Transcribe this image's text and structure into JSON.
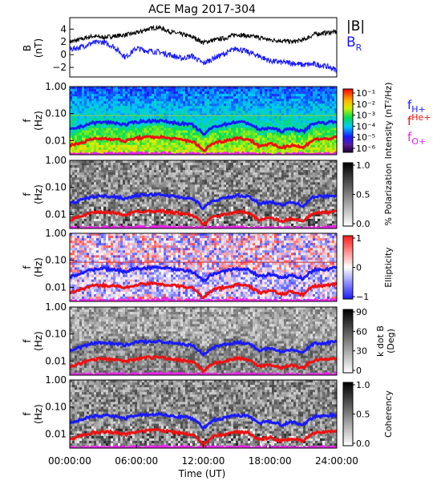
{
  "title": "ACE Mag 2017-304",
  "time_axis": {
    "label": "Time (UT)",
    "ticks": [
      "00:00:00",
      "06:00:00",
      "12:00:00",
      "18:00:00",
      "24:00:00"
    ],
    "range_hours": [
      0,
      24
    ]
  },
  "freq_axis": {
    "label_f": "f",
    "label_unit": "(Hz)",
    "scale": "log",
    "range_hz": [
      0.003,
      1.0
    ],
    "ticks": [
      {
        "value": 1.0,
        "label": "1.00"
      },
      {
        "value": 0.1,
        "label": "0.10"
      },
      {
        "value": 0.01,
        "label": "0.01"
      }
    ]
  },
  "field_panel": {
    "ylabel_line1": "B",
    "ylabel_line2": "(nT)",
    "legend_B": "|B|",
    "legend_BR": "B",
    "legend_BR_sub": "R",
    "ylim": [
      -3.5,
      5.8
    ],
    "yticks": [
      "4",
      "2",
      "0",
      "−2"
    ],
    "ytick_values": [
      4,
      2,
      0,
      -2
    ]
  },
  "spectrogram_panels": [
    {
      "id": "intensity",
      "colorbar_label": "Intensity (nT²/Hz)",
      "colorbar_ticks": [
        "10⁻¹",
        "10⁻²",
        "10⁻³",
        "10⁻⁴",
        "10⁻⁵",
        "10⁻⁶"
      ],
      "colorscale": "rainbow",
      "range": [
        1e-07,
        0.1
      ]
    },
    {
      "id": "polarization",
      "colorbar_label": "% Polarization",
      "colorbar_ticks": [
        "1.0",
        "0.5",
        "0.0"
      ],
      "colorscale": "gray",
      "range": [
        0,
        1
      ]
    },
    {
      "id": "ellipticity",
      "colorbar_label": "Ellipticity",
      "colorbar_ticks": [
        "1",
        "0",
        "−1"
      ],
      "colorscale": "blue-white-red",
      "range": [
        -1,
        1
      ]
    },
    {
      "id": "kdotb",
      "colorbar_label_line1": "k dot B",
      "colorbar_label_line2": "(Deg)",
      "colorbar_ticks": [
        "90",
        "60",
        "30",
        "0"
      ],
      "colorscale": "gray",
      "range": [
        0,
        90
      ]
    },
    {
      "id": "coherency",
      "colorbar_label": "Coherency",
      "colorbar_ticks": [
        "1.0",
        "0.5",
        "0.0"
      ],
      "colorscale": "gray",
      "range": [
        0,
        1
      ]
    }
  ],
  "gyro_legend": [
    {
      "label": "f",
      "sub": "H+",
      "color": "#1a1aff"
    },
    {
      "label": "f",
      "sub": "He+",
      "color": "#ee1111"
    },
    {
      "label": "f",
      "sub": "O+",
      "color": "#ee22ee"
    }
  ],
  "colors": {
    "B_total": "#000000",
    "B_R": "#1a1aff",
    "f_H": "#1a1aff",
    "f_He": "#ee1111",
    "f_O": "#ee22ee",
    "ref_line": "#9acd32"
  },
  "chart_data": {
    "type": "line",
    "x_unit": "hours UT",
    "series": [
      {
        "name": "|B|",
        "x": [
          0,
          1,
          2,
          3,
          4,
          5,
          6,
          7,
          8,
          9,
          10,
          11,
          12,
          13,
          14,
          15,
          16,
          17,
          18,
          19,
          20,
          21,
          22,
          23,
          24
        ],
        "values": [
          2.0,
          2.4,
          2.9,
          2.7,
          2.9,
          3.1,
          3.4,
          4.0,
          4.3,
          3.6,
          3.2,
          2.8,
          1.9,
          2.3,
          2.6,
          3.2,
          2.9,
          2.7,
          2.3,
          2.2,
          2.0,
          2.3,
          3.2,
          3.4,
          3.6
        ]
      },
      {
        "name": "B_R",
        "x": [
          0,
          1,
          2,
          3,
          4,
          5,
          6,
          7,
          8,
          9,
          10,
          11,
          12,
          13,
          14,
          15,
          16,
          17,
          18,
          19,
          20,
          21,
          22,
          23,
          24
        ],
        "values": [
          0.8,
          1.2,
          1.8,
          2.0,
          1.2,
          -0.4,
          1.0,
          0.6,
          0.4,
          0.0,
          -0.6,
          -0.2,
          -1.4,
          -0.5,
          0.2,
          1.0,
          0.4,
          -0.2,
          -1.0,
          -1.2,
          -1.3,
          -1.6,
          -1.5,
          -1.8,
          -2.4
        ]
      },
      {
        "name": "f_H+",
        "x": [
          0,
          1,
          2,
          3,
          4,
          5,
          6,
          7,
          8,
          9,
          10,
          11,
          12,
          13,
          14,
          15,
          16,
          17,
          18,
          19,
          20,
          21,
          22,
          23,
          24
        ],
        "values": [
          0.025,
          0.033,
          0.045,
          0.048,
          0.046,
          0.038,
          0.05,
          0.053,
          0.055,
          0.048,
          0.043,
          0.038,
          0.016,
          0.033,
          0.04,
          0.05,
          0.045,
          0.025,
          0.03,
          0.022,
          0.028,
          0.021,
          0.045,
          0.046,
          0.052
        ]
      },
      {
        "name": "f_He+",
        "x": [
          0,
          1,
          2,
          3,
          4,
          5,
          6,
          7,
          8,
          9,
          10,
          11,
          12,
          13,
          14,
          15,
          16,
          17,
          18,
          19,
          20,
          21,
          22,
          23,
          24
        ],
        "values": [
          0.0063,
          0.0083,
          0.0113,
          0.012,
          0.0115,
          0.0095,
          0.0125,
          0.0133,
          0.0138,
          0.012,
          0.0108,
          0.0095,
          0.004,
          0.0083,
          0.01,
          0.0125,
          0.0113,
          0.0063,
          0.0075,
          0.0055,
          0.007,
          0.0053,
          0.0113,
          0.0115,
          0.013
        ]
      },
      {
        "name": "f_O+",
        "x": [
          0,
          1,
          2,
          3,
          4,
          5,
          6,
          7,
          8,
          9,
          10,
          11,
          12,
          13,
          14,
          15,
          16,
          17,
          18,
          19,
          20,
          21,
          22,
          23,
          24
        ],
        "values": [
          0.0031,
          0.0031,
          0.0031,
          0.0032,
          0.0032,
          0.0032,
          0.0033,
          0.0033,
          0.0034,
          0.0033,
          0.0032,
          0.0032,
          0.0031,
          0.0031,
          0.0032,
          0.0033,
          0.0032,
          0.0031,
          0.0031,
          0.0031,
          0.0031,
          0.0031,
          0.0032,
          0.0032,
          0.0033
        ]
      }
    ]
  }
}
